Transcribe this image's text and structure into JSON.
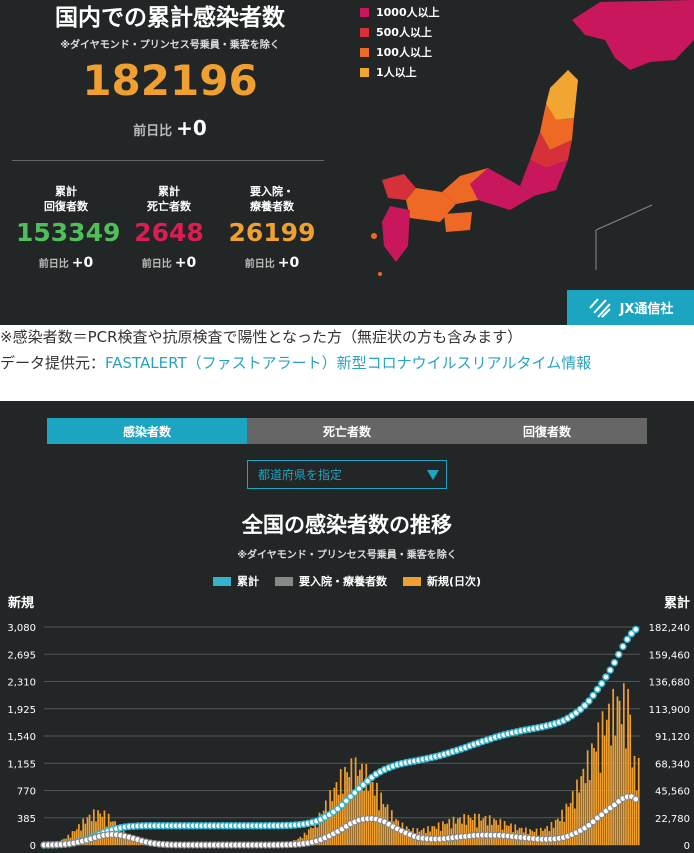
{
  "summary": {
    "title": "国内での累計感染者数",
    "note": "※ダイヤモンド・プリンセス号乗員・乗客を除く",
    "total": "182196",
    "prev_label": "前日比",
    "prev_value": "+0",
    "stats": [
      {
        "label": "累計\n回復者数",
        "value": "153349",
        "color": "#4fbf5a",
        "prev_label": "前日比",
        "prev": "+0"
      },
      {
        "label": "累計\n死亡者数",
        "value": "2648",
        "color": "#d91e52",
        "prev_label": "前日比",
        "prev": "+0"
      },
      {
        "label": "要入院・\n療養者数",
        "value": "26199",
        "color": "#f0a030",
        "prev_label": "前日比",
        "prev": "+0"
      }
    ]
  },
  "map_legend": [
    {
      "label": "1000人以上",
      "color": "#c8175c"
    },
    {
      "label": "500人以上",
      "color": "#d6303a"
    },
    {
      "label": "100人以上",
      "color": "#ee6a24"
    },
    {
      "label": "1人以上",
      "color": "#f2a531"
    }
  ],
  "brand": "JX通信社",
  "notes": {
    "line1": "※感染者数＝PCR検査や抗原検査で陽性となった方（無症状の方も含みます）",
    "line2_prefix": "データ提供元：",
    "line2_link": "FASTALERT（ファストアラート）新型コロナウイルスリアルタイム情報"
  },
  "tabs": [
    {
      "label": "感染者数",
      "active": true
    },
    {
      "label": "死亡者数",
      "active": false
    },
    {
      "label": "回復者数",
      "active": false
    }
  ],
  "select": {
    "value": "都道府県を指定"
  },
  "chart_data": {
    "type": "bar",
    "title": "全国の感染者数の推移",
    "subtitle": "※ダイヤモンド・プリンセス号乗員・乗客を除く",
    "ylabel_left": "新規",
    "ylabel_right": "累計",
    "yticks_left": [
      "0",
      "385",
      "770",
      "1,155",
      "1,540",
      "1,925",
      "2,310",
      "2,695",
      "3,080"
    ],
    "yticks_right": [
      "0",
      "22,780",
      "45,560",
      "68,340",
      "91,120",
      "113,900",
      "136,680",
      "159,460",
      "182,240"
    ],
    "ylim_left": [
      0,
      3080
    ],
    "ylim_right": [
      0,
      182240
    ],
    "series": [
      {
        "name": "累計",
        "type": "scatter-line",
        "color": "#35b3cd"
      },
      {
        "name": "要入院・療養者数",
        "type": "scatter-line",
        "color": "#888888"
      },
      {
        "name": "新規(日次)",
        "type": "bar",
        "color": "#f0a030"
      }
    ],
    "grid": true,
    "legend_position": "top"
  }
}
